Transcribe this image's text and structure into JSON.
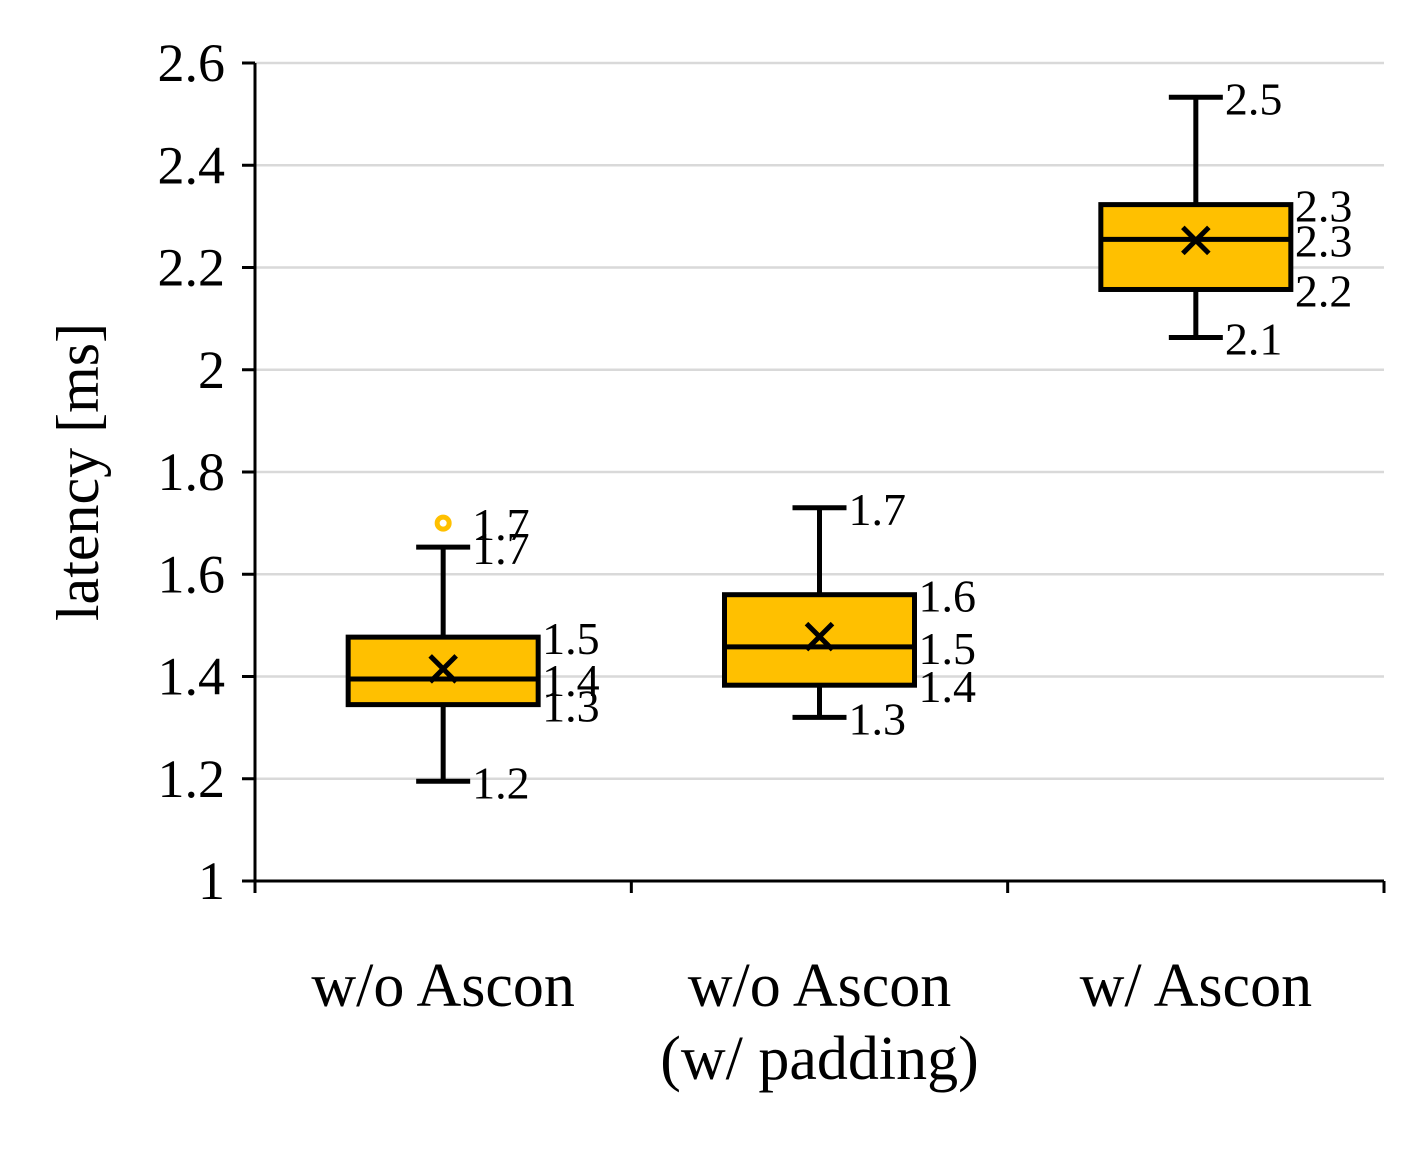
{
  "chart_data": {
    "type": "box",
    "ylabel": "latency [ms]",
    "ylim": [
      1,
      2.6
    ],
    "yticks": [
      "1",
      "1.2",
      "1.4",
      "1.6",
      "1.8",
      "2",
      "2.2",
      "2.4",
      "2.6"
    ],
    "grid": true,
    "colors": {
      "box_fill": "#FFC000",
      "stroke": "#000000",
      "grid": "#D9D9D9"
    },
    "categories": [
      {
        "lines": [
          "w/o Ascon"
        ]
      },
      {
        "lines": [
          "w/o Ascon",
          "(w/ padding)"
        ]
      },
      {
        "lines": [
          "w/ Ascon"
        ]
      }
    ],
    "boxes": [
      {
        "min": 1.195,
        "q1": 1.345,
        "median": 1.395,
        "q3": 1.477,
        "max": 1.653,
        "mean": 1.415,
        "outliers": [
          1.7
        ],
        "labels": [
          {
            "text": "1.2",
            "value": 1.195
          },
          {
            "text": "1.3",
            "value": 1.345
          },
          {
            "text": "1.4",
            "value": 1.395
          },
          {
            "text": "1.5",
            "value": 1.477
          },
          {
            "text": "1.7",
            "value": 1.653
          },
          {
            "text": "1.7",
            "value": 1.7
          }
        ]
      },
      {
        "min": 1.32,
        "q1": 1.383,
        "median": 1.458,
        "q3": 1.56,
        "max": 1.73,
        "mean": 1.478,
        "outliers": [],
        "labels": [
          {
            "text": "1.3",
            "value": 1.32
          },
          {
            "text": "1.4",
            "value": 1.383
          },
          {
            "text": "1.5",
            "value": 1.458
          },
          {
            "text": "1.6",
            "value": 1.56
          },
          {
            "text": "1.7",
            "value": 1.73
          }
        ]
      },
      {
        "min": 2.063,
        "q1": 2.157,
        "median": 2.255,
        "q3": 2.323,
        "max": 2.533,
        "mean": 2.253,
        "outliers": [],
        "labels": [
          {
            "text": "2.1",
            "value": 2.063
          },
          {
            "text": "2.2",
            "value": 2.157
          },
          {
            "text": "2.3",
            "value": 2.255
          },
          {
            "text": "2.3",
            "value": 2.323
          },
          {
            "text": "2.5",
            "value": 2.533
          }
        ]
      }
    ]
  }
}
